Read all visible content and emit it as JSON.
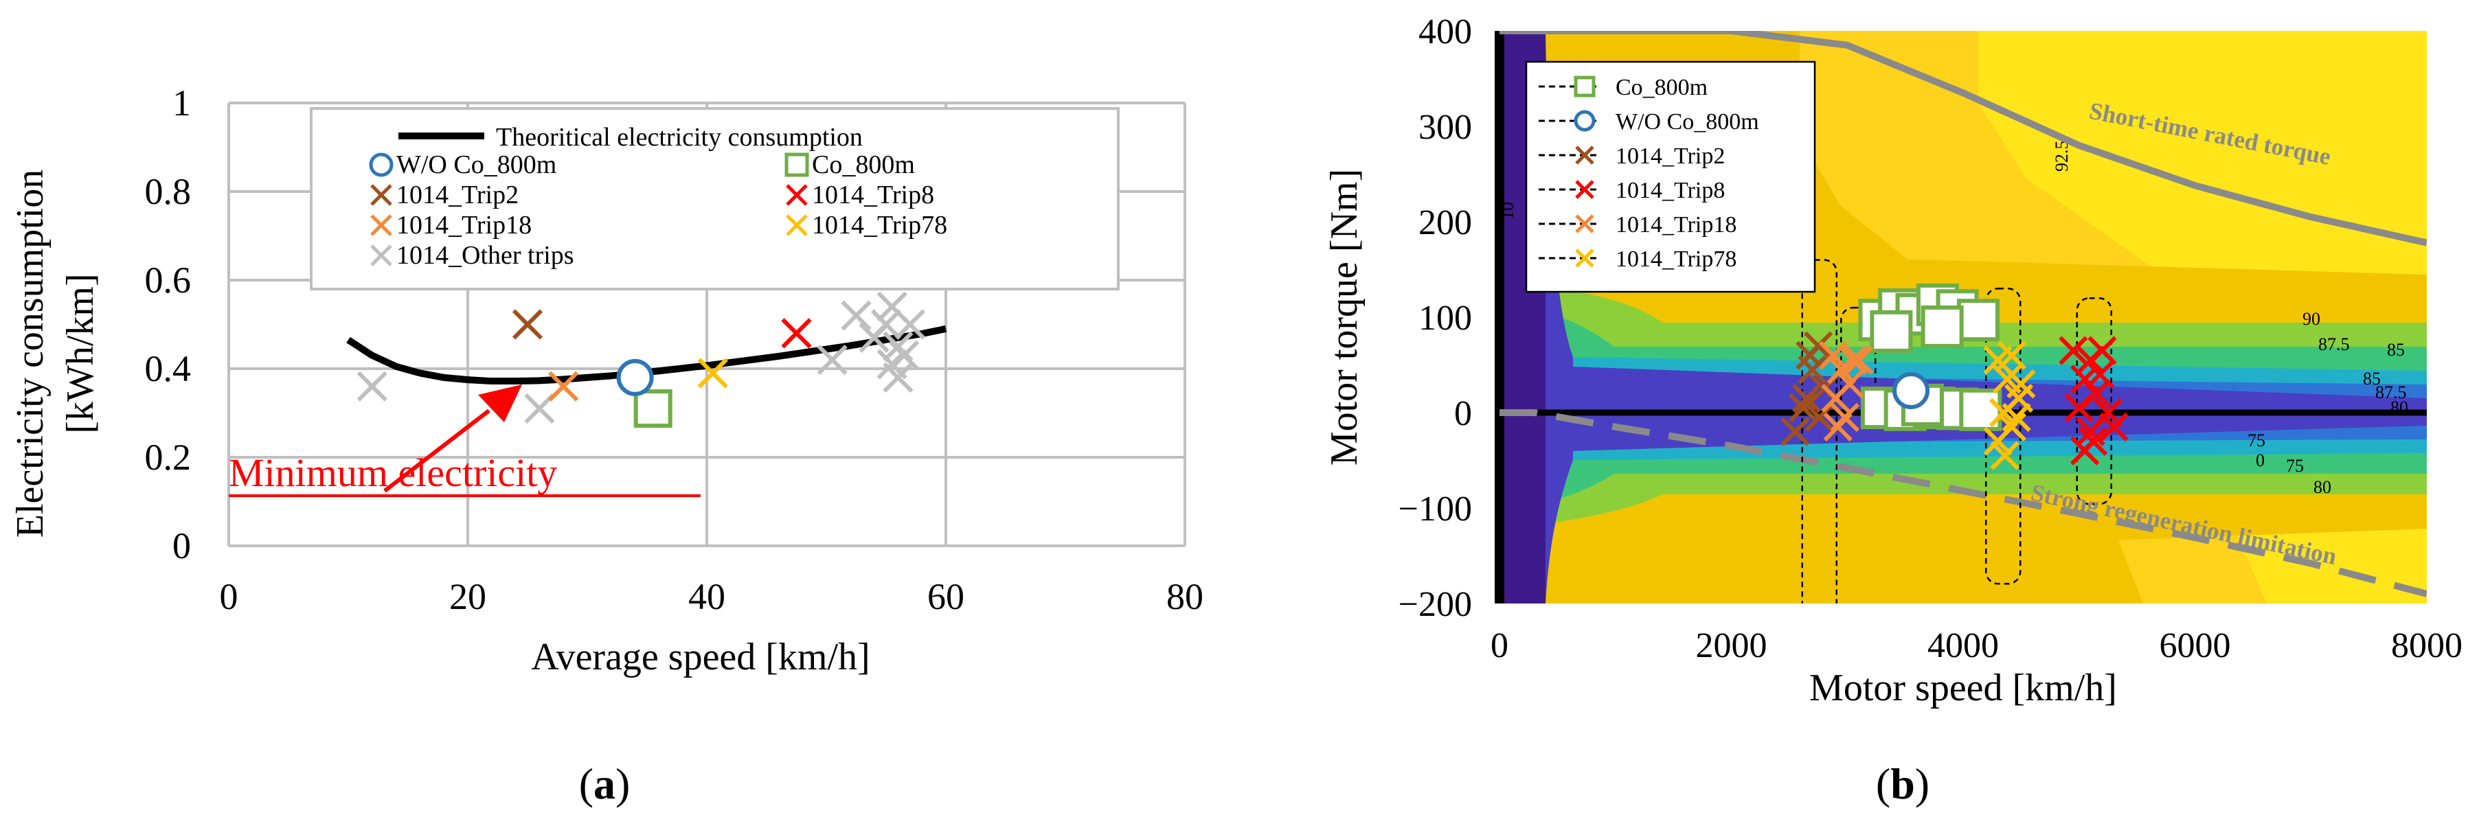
{
  "chart_data": [
    {
      "panel_label": "a",
      "type": "scatter",
      "xlabel": "Average speed   [km/h]",
      "ylabel_line1": "Electricity consumption",
      "ylabel_line2": "[kWh/km]",
      "xlim": [
        0,
        80
      ],
      "ylim": [
        0,
        1
      ],
      "xticks": [
        0,
        20,
        40,
        60,
        80
      ],
      "yticks": [
        0,
        0.2,
        0.4,
        0.6,
        0.8,
        1
      ],
      "ytick_labels": [
        "0",
        "0.2",
        "0.4",
        "0.6",
        "0.8",
        "1"
      ],
      "grid": true,
      "curve": {
        "name": "Theoritical electricity consumption",
        "x": [
          10,
          12,
          14,
          16,
          18,
          20,
          22,
          24,
          26,
          28,
          30,
          32,
          34,
          36,
          38,
          40,
          42,
          44,
          46,
          48,
          50,
          52,
          54,
          56,
          58,
          60
        ],
        "y": [
          0.465,
          0.43,
          0.405,
          0.39,
          0.38,
          0.375,
          0.372,
          0.372,
          0.373,
          0.376,
          0.38,
          0.384,
          0.389,
          0.395,
          0.401,
          0.407,
          0.414,
          0.421,
          0.428,
          0.436,
          0.444,
          0.452,
          0.461,
          0.47,
          0.479,
          0.49
        ]
      },
      "series": [
        {
          "name": "W/O Co_800m",
          "marker": "circle",
          "color": "#2e75b6",
          "points": [
            [
              34,
              0.38
            ]
          ]
        },
        {
          "name": "Co_800m",
          "marker": "square",
          "color": "#70ad47",
          "points": [
            [
              35.5,
              0.31
            ]
          ]
        },
        {
          "name": "1014_Trip2",
          "marker": "x",
          "color": "#a0501e",
          "points": [
            [
              25,
              0.5
            ]
          ]
        },
        {
          "name": "1014_Trip8",
          "marker": "x",
          "color": "#ff0000",
          "points": [
            [
              47.5,
              0.48
            ]
          ]
        },
        {
          "name": "1014_Trip18",
          "marker": "x",
          "color": "#f4893b",
          "points": [
            [
              28,
              0.36
            ]
          ]
        },
        {
          "name": "1014_Trip78",
          "marker": "x",
          "color": "#ffc000",
          "points": [
            [
              40.5,
              0.39
            ]
          ]
        },
        {
          "name": "1014_Other trips",
          "marker": "x",
          "color": "#bfbfbf",
          "points": [
            [
              12,
              0.36
            ],
            [
              26,
              0.31
            ],
            [
              50.5,
              0.42
            ],
            [
              52.5,
              0.52
            ],
            [
              54,
              0.47
            ],
            [
              55,
              0.5
            ],
            [
              55.5,
              0.54
            ],
            [
              56,
              0.45
            ],
            [
              55.5,
              0.41
            ],
            [
              56,
              0.38
            ],
            [
              56.5,
              0.43
            ],
            [
              57,
              0.5
            ]
          ]
        }
      ],
      "annotation": {
        "text": "Minimum electricity",
        "color": "#e31a1c",
        "points_to": [
          24,
          0.375
        ]
      }
    },
    {
      "panel_label": "b",
      "type": "scatter",
      "background": "motor efficiency contour map",
      "xlabel": "Motor speed   [km/h]",
      "ylabel": "Motor torque   [Nm]",
      "xlim": [
        0,
        8000
      ],
      "ylim": [
        -200,
        400
      ],
      "xticks": [
        0,
        2000,
        4000,
        6000,
        8000
      ],
      "yticks": [
        -200,
        -100,
        0,
        100,
        200,
        300,
        400
      ],
      "ytick_labels": [
        "−200",
        "−100",
        "0",
        "100",
        "200",
        "300",
        "400"
      ],
      "contour_labels": [
        "92.5",
        "10",
        "90",
        "87.5",
        "85",
        "80",
        "75",
        "0",
        "75",
        "80",
        "85",
        "87.5"
      ],
      "contour_colors": [
        "#3e1a8a",
        "#4a3fc2",
        "#2f75d6",
        "#22b0c9",
        "#3cc57a",
        "#8ccf3a",
        "#e9b800",
        "#ffd21c",
        "#ffe51a"
      ],
      "curves": [
        {
          "name": "Short-time rated torque",
          "x": [
            0,
            2000,
            3000,
            4000,
            5000,
            6000,
            7000,
            8000
          ],
          "y": [
            400,
            400,
            385,
            335,
            280,
            238,
            205,
            178
          ]
        },
        {
          "name": "Strong regeneration limitation",
          "x": [
            0,
            300,
            1000,
            2000,
            3000,
            4000,
            5000,
            6000,
            7000,
            8000
          ],
          "y": [
            0,
            0,
            -15,
            -35,
            -58,
            -82,
            -106,
            -131,
            -158,
            -190
          ]
        }
      ],
      "series": [
        {
          "name": "Co_800m",
          "marker": "square",
          "color": "#70ad47",
          "points": [
            [
              3280,
              97
            ],
            [
              3450,
              108
            ],
            [
              3600,
              103
            ],
            [
              3780,
              113
            ],
            [
              3950,
              107
            ],
            [
              4130,
              97
            ],
            [
              3380,
              85
            ],
            [
              3820,
              90
            ],
            [
              3300,
              5
            ],
            [
              3500,
              3
            ],
            [
              3750,
              5
            ],
            [
              3950,
              4
            ],
            [
              4150,
              3
            ],
            [
              3650,
              8
            ]
          ]
        },
        {
          "name": "W/O Co_800m",
          "marker": "circle",
          "color": "#2e75b6",
          "points": [
            [
              3550,
              23
            ]
          ]
        },
        {
          "name": "1014_Trip2",
          "marker": "x",
          "color": "#a0501e",
          "points": [
            [
              2550,
              -20
            ],
            [
              2650,
              15
            ],
            [
              2700,
              45
            ],
            [
              2750,
              70
            ],
            [
              2800,
              25
            ],
            [
              2680,
              60
            ],
            [
              2760,
              -5
            ],
            [
              2620,
              5
            ]
          ]
        },
        {
          "name": "1014_Trip8",
          "marker": "x",
          "color": "#ff0000",
          "points": [
            [
              4950,
              65
            ],
            [
              5050,
              35
            ],
            [
              5100,
              55
            ],
            [
              5150,
              20
            ],
            [
              5000,
              5
            ],
            [
              5100,
              -20
            ],
            [
              5200,
              65
            ],
            [
              5050,
              -40
            ],
            [
              5250,
              0
            ],
            [
              5300,
              -15
            ],
            [
              5120,
              -30
            ],
            [
              5180,
              40
            ]
          ]
        },
        {
          "name": "1014_Trip18",
          "marker": "x",
          "color": "#f4893b",
          "points": [
            [
              2880,
              60
            ],
            [
              2950,
              45
            ],
            [
              3020,
              30
            ],
            [
              2900,
              15
            ],
            [
              3050,
              55
            ],
            [
              2980,
              -5
            ],
            [
              3100,
              55
            ],
            [
              2920,
              -15
            ]
          ]
        },
        {
          "name": "1014_Trip78",
          "marker": "x",
          "color": "#ffc000",
          "points": [
            [
              4300,
              55
            ],
            [
              4380,
              35
            ],
            [
              4420,
              60
            ],
            [
              4480,
              15
            ],
            [
              4350,
              0
            ],
            [
              4420,
              -15
            ],
            [
              4500,
              30
            ],
            [
              4300,
              -30
            ],
            [
              4360,
              -45
            ],
            [
              4460,
              -5
            ]
          ]
        }
      ],
      "legend": [
        "Co_800m",
        "W/O Co_800m",
        "1014_Trip2",
        "1014_Trip8",
        "1014_Trip18",
        "1014_Trip78"
      ]
    }
  ]
}
